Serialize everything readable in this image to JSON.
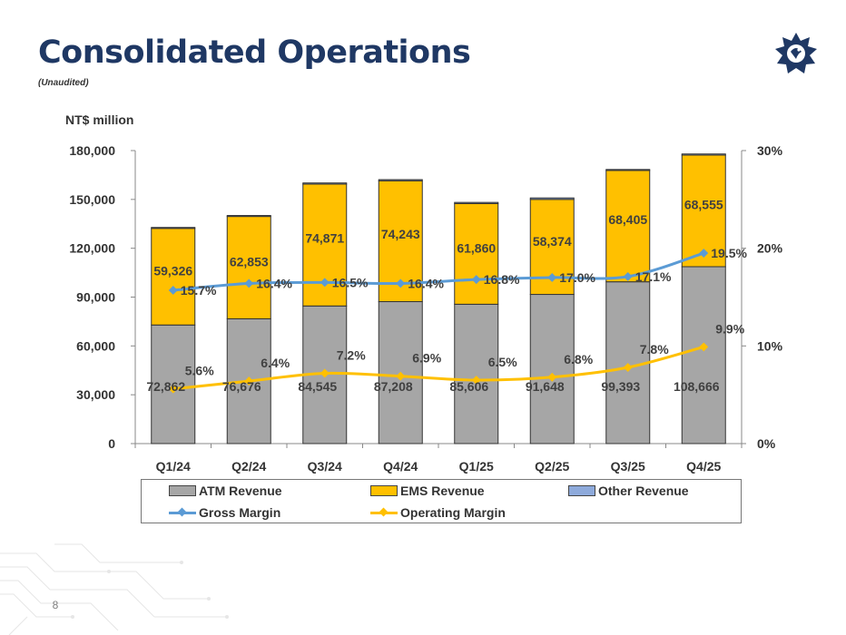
{
  "slide": {
    "title": "Consolidated Operations",
    "subtitle": "(Unaudited)",
    "page_number": "8"
  },
  "colors": {
    "title": "#1f3864",
    "atm": "#a6a6a6",
    "ems": "#ffc000",
    "other": "#8eaadb",
    "gross_margin": "#5b9bd5",
    "operating_margin": "#ffc000"
  },
  "chart_data": {
    "type": "bar",
    "stacked": true,
    "unit_label": "NT$ million",
    "categories": [
      "Q1/24",
      "Q2/24",
      "Q3/24",
      "Q4/24",
      "Q1/25",
      "Q2/25",
      "Q3/25",
      "Q4/25"
    ],
    "ylim": [
      0,
      180000
    ],
    "y_ticks": [
      "0",
      "30,000",
      "60,000",
      "90,000",
      "120,000",
      "150,000",
      "180,000"
    ],
    "y2lim": [
      0,
      30
    ],
    "y2_ticks": [
      "0%",
      "10%",
      "20%",
      "30%"
    ],
    "series": [
      {
        "name": "ATM Revenue",
        "kind": "bar",
        "color": "#a6a6a6",
        "values": [
          72862,
          76676,
          84545,
          87208,
          85606,
          91648,
          99393,
          108666
        ],
        "labels": [
          "72,862",
          "76,676",
          "84,545",
          "87,208",
          "85,606",
          "91,648",
          "99,393",
          "108,666"
        ]
      },
      {
        "name": "EMS Revenue",
        "kind": "bar",
        "color": "#ffc000",
        "values": [
          59326,
          62853,
          74871,
          74243,
          61860,
          58374,
          68405,
          68555
        ],
        "labels": [
          "59,326",
          "62,853",
          "74,871",
          "74,243",
          "61,860",
          "58,374",
          "68,405",
          "68,555"
        ]
      },
      {
        "name": "Other Revenue",
        "kind": "bar",
        "color": "#8eaadb",
        "values": [
          600,
          600,
          700,
          700,
          700,
          900,
          600,
          700
        ]
      },
      {
        "name": "Gross Margin",
        "kind": "line",
        "axis": "right",
        "color": "#5b9bd5",
        "values": [
          15.7,
          16.4,
          16.5,
          16.4,
          16.8,
          17.0,
          17.1,
          19.5
        ],
        "labels": [
          "15.7%",
          "16.4%",
          "16.5%",
          "16.4%",
          "16.8%",
          "17.0%",
          "17.1%",
          "19.5%"
        ]
      },
      {
        "name": "Operating Margin",
        "kind": "line",
        "axis": "right",
        "color": "#ffc000",
        "values": [
          5.6,
          6.4,
          7.2,
          6.9,
          6.5,
          6.8,
          7.8,
          9.9
        ],
        "labels": [
          "5.6%",
          "6.4%",
          "7.2%",
          "6.9%",
          "6.5%",
          "6.8%",
          "7.8%",
          "9.9%"
        ]
      }
    ],
    "legend": {
      "position": "bottom",
      "items": [
        "ATM Revenue",
        "EMS Revenue",
        "Other Revenue",
        "Gross Margin",
        "Operating Margin"
      ]
    },
    "grid": false
  }
}
